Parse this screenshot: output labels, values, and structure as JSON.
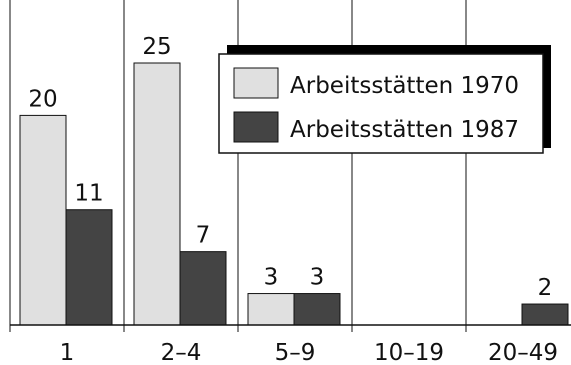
{
  "chart_data": {
    "type": "bar",
    "categories": [
      "1",
      "2–4",
      "5–9",
      "10–19",
      "20–49"
    ],
    "series": [
      {
        "name": "Arbeitsstätten 1970",
        "values": [
          20,
          25,
          3,
          null,
          null
        ],
        "color": "#e0e0e0"
      },
      {
        "name": "Arbeitsstätten 1987",
        "values": [
          11,
          7,
          3,
          null,
          2
        ],
        "color": "#444444"
      }
    ],
    "ylim": [
      0,
      30
    ],
    "grid": "vertical category separators",
    "legend_placement": "top-right"
  }
}
